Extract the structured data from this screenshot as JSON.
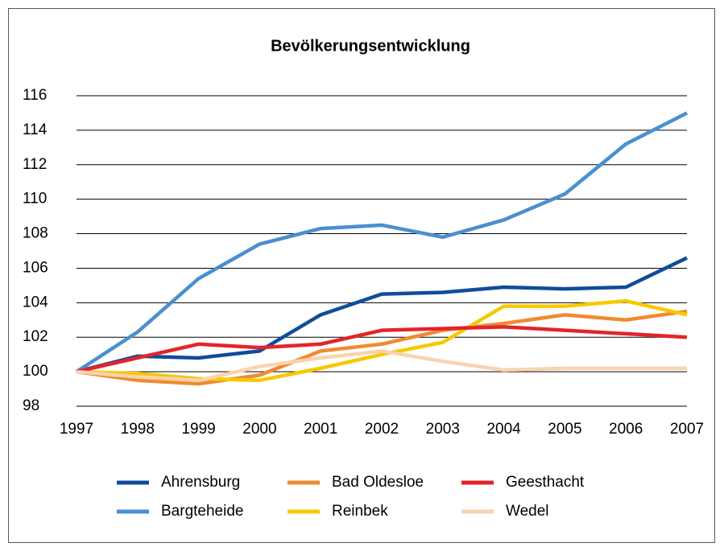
{
  "chart_data": {
    "type": "line",
    "title": "Bevölkerungsentwicklung",
    "x": [
      1997,
      1998,
      1999,
      2000,
      2001,
      2002,
      2003,
      2004,
      2005,
      2006,
      2007
    ],
    "xlim": [
      1997,
      2007
    ],
    "xticks": [
      1997,
      1998,
      1999,
      2000,
      2001,
      2002,
      2003,
      2004,
      2005,
      2006,
      2007
    ],
    "ylim": [
      98,
      116
    ],
    "yticks": [
      98,
      100,
      102,
      104,
      106,
      108,
      110,
      112,
      114,
      116
    ],
    "grid": true,
    "legend": "bottom",
    "series": [
      {
        "name": "Ahrensburg",
        "color": "#0f4c9c",
        "values": [
          100,
          100.9,
          100.8,
          101.2,
          103.3,
          104.5,
          104.6,
          104.9,
          104.8,
          104.9,
          106.6
        ]
      },
      {
        "name": "Bargteheide",
        "color": "#4a8fd0",
        "values": [
          100,
          102.3,
          105.4,
          107.4,
          108.3,
          108.5,
          107.8,
          108.8,
          110.3,
          113.2,
          115
        ]
      },
      {
        "name": "Bad Oldesloe",
        "color": "#f08a30",
        "values": [
          100,
          99.5,
          99.3,
          99.8,
          101.2,
          101.6,
          102.4,
          102.8,
          103.3,
          103,
          103.5
        ]
      },
      {
        "name": "Reinbek",
        "color": "#f7c800",
        "values": [
          100,
          99.9,
          99.6,
          99.5,
          100.2,
          101,
          101.7,
          103.8,
          103.8,
          104.1,
          103.3
        ]
      },
      {
        "name": "Geesthacht",
        "color": "#e3242b",
        "values": [
          100,
          100.8,
          101.6,
          101.4,
          101.6,
          102.4,
          102.5,
          102.6,
          102.4,
          102.2,
          102
        ]
      },
      {
        "name": "Wedel",
        "color": "#f9d3b0",
        "values": [
          100,
          99.7,
          99.5,
          100.3,
          100.8,
          101.2,
          100.6,
          100.1,
          100.2,
          100.2,
          100.2
        ]
      }
    ]
  }
}
